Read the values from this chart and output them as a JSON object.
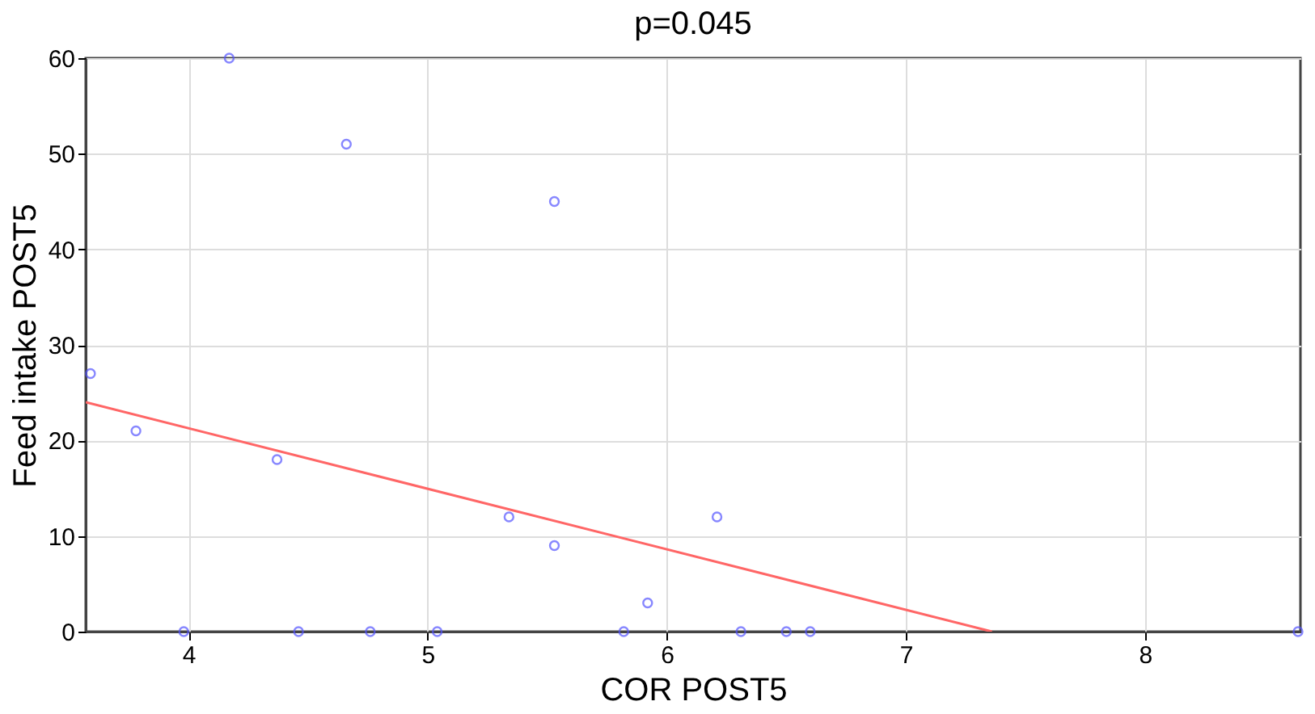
{
  "chart_data": {
    "type": "scatter",
    "title": "p=0.045",
    "xlabel": "COR POST5",
    "ylabel": "Feed intake POST5",
    "xlim": [
      3.57,
      8.65
    ],
    "xticks": [
      4,
      5,
      6,
      7,
      8
    ],
    "ylim": [
      0,
      60
    ],
    "yticks": [
      0,
      10,
      20,
      30,
      40,
      50,
      60
    ],
    "grid": true,
    "marker": "circle",
    "series": [
      {
        "color": "#5555ff",
        "x": [
          3.59,
          3.78,
          3.98,
          4.17,
          4.37,
          4.46,
          4.66,
          4.76,
          5.04,
          5.34,
          5.53,
          5.53,
          5.82,
          5.92,
          6.21,
          6.31,
          6.5,
          6.6,
          8.64
        ],
        "values": [
          27,
          21,
          0,
          60,
          18,
          0,
          51,
          0,
          0,
          12,
          45,
          9,
          0,
          3,
          12,
          0,
          0,
          0,
          0
        ]
      },
      {
        "type": "line",
        "marker": "none",
        "color": "#ff6666",
        "x": [
          3.57,
          7.36
        ],
        "values": [
          24,
          0
        ]
      }
    ]
  }
}
